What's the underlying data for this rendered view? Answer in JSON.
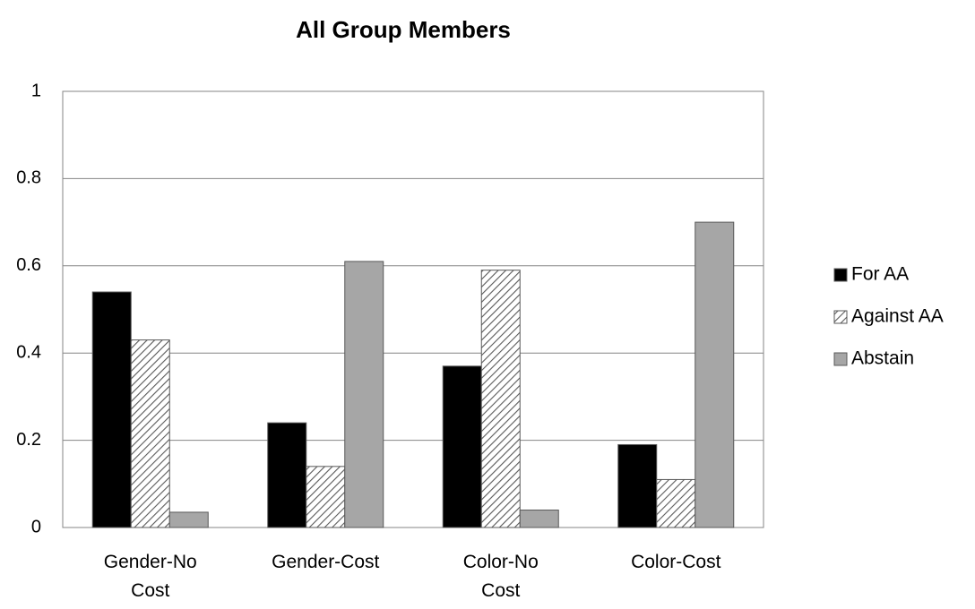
{
  "chart_data": {
    "type": "bar",
    "title": "All Group Members",
    "categories": [
      "Gender-No Cost",
      "Gender-Cost",
      "Color-No Cost",
      "Color-Cost"
    ],
    "series": [
      {
        "name": "For AA",
        "color": "#000000",
        "values": [
          0.54,
          0.24,
          0.37,
          0.19
        ]
      },
      {
        "name": "Against AA",
        "color": "#595959",
        "pattern": "hatch",
        "values": [
          0.43,
          0.14,
          0.59,
          0.11
        ]
      },
      {
        "name": "Abstain",
        "color": "#a6a6a6",
        "values": [
          0.035,
          0.61,
          0.04,
          0.7
        ]
      }
    ],
    "ylim": [
      0,
      1
    ],
    "yticks": [
      0,
      0.2,
      0.4,
      0.6,
      0.8,
      1
    ],
    "grid": true,
    "legend": "right"
  }
}
